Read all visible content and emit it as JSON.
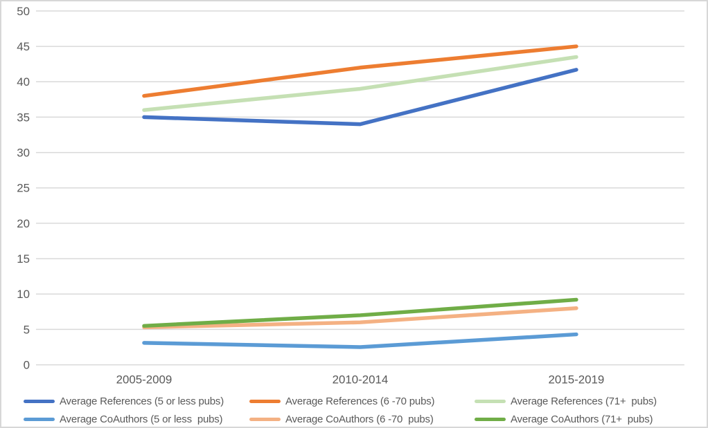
{
  "chart_data": {
    "type": "line",
    "title": "",
    "xlabel": "",
    "ylabel": "",
    "categories": [
      "2005-2009",
      "2010-2014",
      "2015-2019"
    ],
    "series": [
      {
        "name": "Average References (5 or less pubs)",
        "color": "#4472C4",
        "values": [
          35,
          34,
          41.7
        ]
      },
      {
        "name": "Average References (6 -70 pubs)",
        "color": "#ED7D31",
        "values": [
          38,
          42,
          45
        ]
      },
      {
        "name": "Average References (71+  pubs)",
        "color": "#C5E0B4",
        "values": [
          36,
          39,
          43.5
        ]
      },
      {
        "name": "Average CoAuthors (5 or less  pubs)",
        "color": "#5B9BD5",
        "values": [
          3.1,
          2.5,
          4.3
        ]
      },
      {
        "name": "Average CoAuthors (6 -70  pubs)",
        "color": "#F4B183",
        "values": [
          5.3,
          6,
          8
        ]
      },
      {
        "name": "Average CoAuthors (71+  pubs)",
        "color": "#70AD47",
        "values": [
          5.5,
          7,
          9.2
        ]
      }
    ],
    "ylim": [
      0,
      50
    ],
    "yticks": [
      0,
      5,
      10,
      15,
      20,
      25,
      30,
      35,
      40,
      45,
      50
    ],
    "grid": true,
    "legend_position": "bottom",
    "legend_rows": 2,
    "legend_cols": 3
  },
  "style": {
    "background": "#FFFFFF",
    "border_color": "#D7D7D7",
    "grid_color": "#D9D9D9",
    "axis_text_color": "#595959",
    "legend_text_color": "#595959"
  }
}
